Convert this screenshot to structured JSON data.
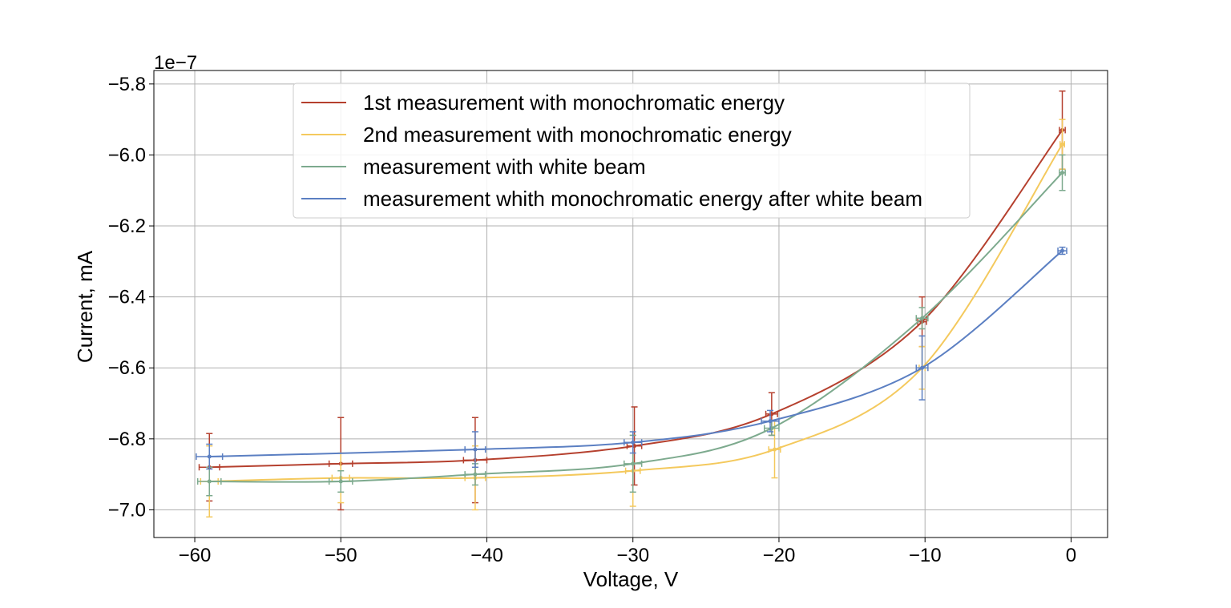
{
  "chart_data": {
    "type": "line",
    "title": "",
    "xlabel": "Voltage, V",
    "ylabel": "Current, mA",
    "y_offset_label": "1e−7",
    "xlim": [
      -62.8,
      2.5
    ],
    "ylim": [
      -7.078,
      -5.762
    ],
    "x_ticks": [
      -60,
      -50,
      -40,
      -30,
      -20,
      -10,
      0
    ],
    "x_tick_labels": [
      "−60",
      "−50",
      "−40",
      "−30",
      "−20",
      "−10",
      "0"
    ],
    "y_ticks": [
      -5.8,
      -6.0,
      -6.2,
      -6.4,
      -6.6,
      -6.8,
      -7.0
    ],
    "y_tick_labels": [
      "−5.8",
      "−6.0",
      "−6.2",
      "−6.4",
      "−6.6",
      "−6.8",
      "−7.0"
    ],
    "grid": true,
    "legend_position": "top-center",
    "series": [
      {
        "name": "1st measurement with monochromatic energy",
        "color": "#b5402e",
        "points": [
          {
            "x": -59,
            "y": -6.88,
            "yerr": 0.095,
            "xerr": 0.7
          },
          {
            "x": -50,
            "y": -6.87,
            "yerr": 0.13,
            "xerr": 0.8
          },
          {
            "x": -40.8,
            "y": -6.86,
            "yerr": 0.12,
            "xerr": 0.8
          },
          {
            "x": -29.9,
            "y": -6.82,
            "yerr": 0.11,
            "xerr": 0.5
          },
          {
            "x": -20.5,
            "y": -6.73,
            "yerr": 0.06,
            "xerr": 0.4
          },
          {
            "x": -10.2,
            "y": -6.47,
            "yerr": 0.07,
            "xerr": 0.3
          },
          {
            "x": -0.6,
            "y": -5.93,
            "yerr": 0.11,
            "xerr": 0.2
          }
        ]
      },
      {
        "name": "2nd measurement with monochromatic energy",
        "color": "#f4c95d",
        "points": [
          {
            "x": -59,
            "y": -6.92,
            "yerr": 0.1,
            "xerr": 0.6
          },
          {
            "x": -50,
            "y": -6.91,
            "yerr": 0.07,
            "xerr": 0.6
          },
          {
            "x": -40.8,
            "y": -6.91,
            "yerr": 0.09,
            "xerr": 0.7
          },
          {
            "x": -30,
            "y": -6.89,
            "yerr": 0.1,
            "xerr": 0.5
          },
          {
            "x": -20.3,
            "y": -6.83,
            "yerr": 0.08,
            "xerr": 0.4
          },
          {
            "x": -10.2,
            "y": -6.6,
            "yerr": 0.06,
            "xerr": 0.2
          },
          {
            "x": -0.6,
            "y": -5.97,
            "yerr": 0.07,
            "xerr": 0.15
          }
        ]
      },
      {
        "name": "measurement with white beam",
        "color": "#7daa8e",
        "points": [
          {
            "x": -59,
            "y": -6.92,
            "yerr": 0.04,
            "xerr": 0.8
          },
          {
            "x": -50,
            "y": -6.92,
            "yerr": 0.03,
            "xerr": 0.8
          },
          {
            "x": -40.8,
            "y": -6.9,
            "yerr": 0.03,
            "xerr": 0.7
          },
          {
            "x": -30,
            "y": -6.87,
            "yerr": 0.08,
            "xerr": 0.6
          },
          {
            "x": -20.5,
            "y": -6.77,
            "yerr": 0.02,
            "xerr": 0.5
          },
          {
            "x": -10.2,
            "y": -6.46,
            "yerr": 0.03,
            "xerr": 0.4
          },
          {
            "x": -0.6,
            "y": -6.05,
            "yerr": 0.05,
            "xerr": 0.2
          }
        ]
      },
      {
        "name": "measurement whith monochromatic energy after white beam",
        "color": "#5b7fc2",
        "points": [
          {
            "x": -59,
            "y": -6.85,
            "yerr": 0.035,
            "xerr": 0.9
          },
          {
            "x": -40.8,
            "y": -6.83,
            "yerr": 0.05,
            "xerr": 0.7
          },
          {
            "x": -30,
            "y": -6.81,
            "yerr": 0.03,
            "xerr": 0.6
          },
          {
            "x": -20.6,
            "y": -6.75,
            "yerr": 0.03,
            "xerr": 0.6
          },
          {
            "x": -10.2,
            "y": -6.6,
            "yerr": 0.09,
            "xerr": 0.4
          },
          {
            "x": -0.6,
            "y": -6.27,
            "yerr": 0.01,
            "xerr": 0.3
          }
        ]
      }
    ]
  }
}
